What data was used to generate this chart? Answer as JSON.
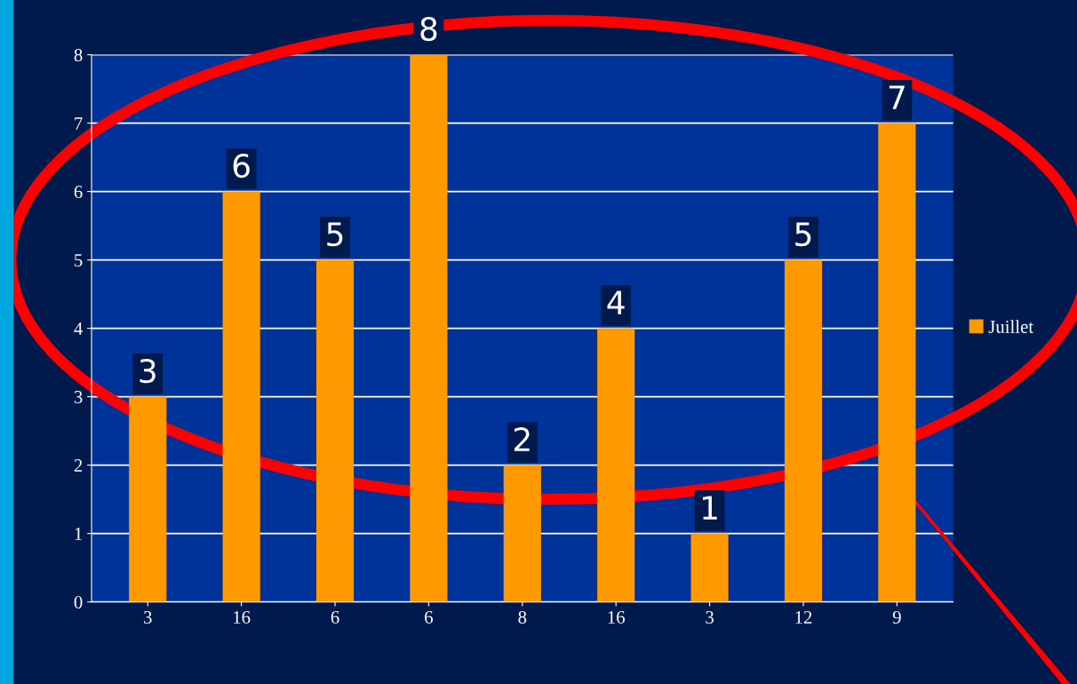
{
  "chart_data": {
    "type": "bar",
    "categories": [
      "3",
      "16",
      "6",
      "6",
      "8",
      "16",
      "3",
      "12",
      "9"
    ],
    "series": [
      {
        "name": "Juillet",
        "color": "#ff9900",
        "values": [
          3,
          6,
          5,
          8,
          2,
          4,
          1,
          5,
          7
        ]
      }
    ],
    "ylim": [
      0,
      8
    ],
    "yticks": [
      0,
      1,
      2,
      3,
      4,
      5,
      6,
      7,
      8
    ],
    "grid": "y",
    "legend": "right",
    "data_labels": true
  }
}
